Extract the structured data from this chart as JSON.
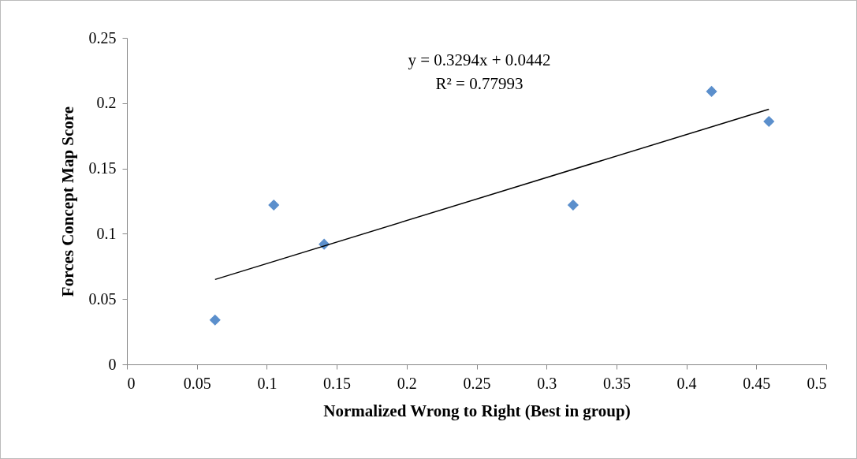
{
  "chart_data": {
    "type": "scatter",
    "xlabel": "Normalized Wrong to Right (Best in group)",
    "ylabel": "Forces Concept Map Score",
    "xlim": [
      0,
      0.5
    ],
    "xticks": [
      0,
      0.05,
      0.1,
      0.15,
      0.2,
      0.25,
      0.3,
      0.35,
      0.4,
      0.45,
      0.5
    ],
    "ylim": [
      0,
      0.25
    ],
    "yticks": [
      0,
      0.05,
      0.1,
      0.15,
      0.2,
      0.25
    ],
    "grid": false,
    "series": [
      {
        "color": "#5b8fcc",
        "marker": "diamond",
        "x": [
          0.063,
          0.105,
          0.141,
          0.319,
          0.418,
          0.459
        ],
        "values": [
          0.034,
          0.122,
          0.092,
          0.122,
          0.209,
          0.186
        ]
      },
      {
        "type": "line",
        "color": "#000000",
        "marker": "none",
        "line_style": "solid",
        "x": [
          0.063,
          0.459
        ],
        "values": [
          0.065,
          0.1954
        ]
      }
    ],
    "annotations": [
      "y = 0.3294x + 0.0442",
      "R² = 0.77993"
    ]
  }
}
